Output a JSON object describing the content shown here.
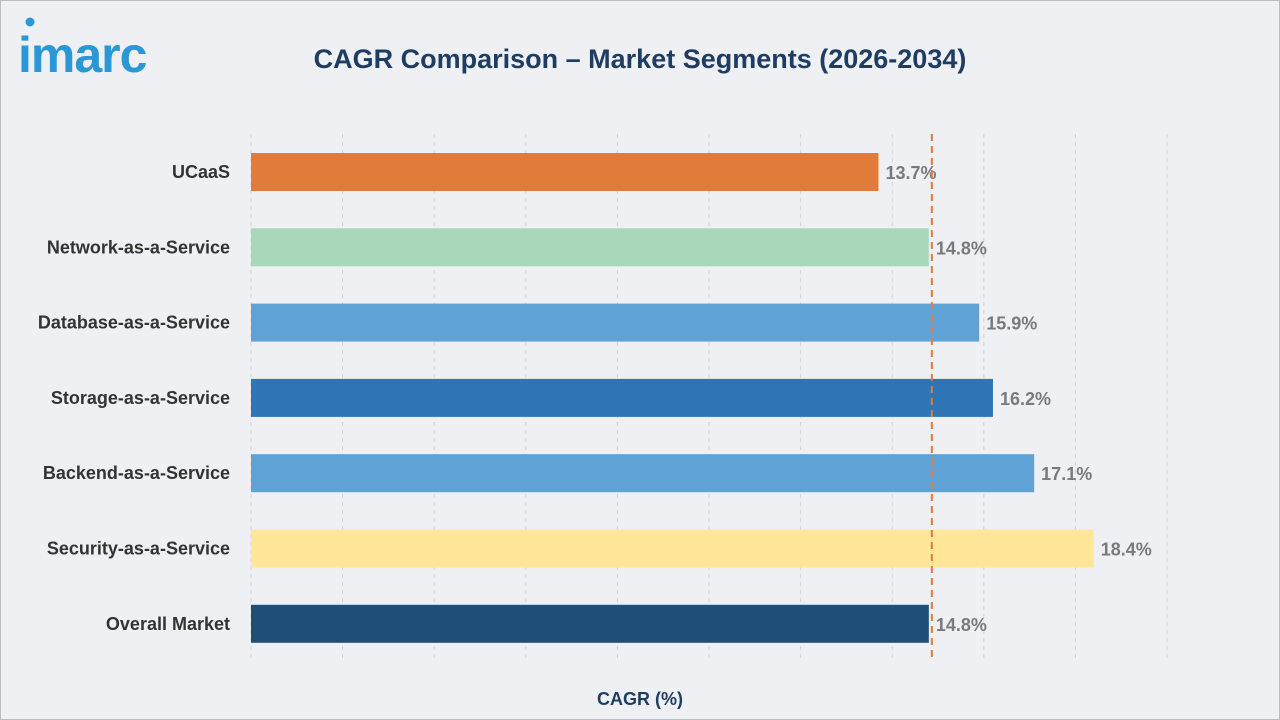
{
  "brand": {
    "logo_text": "imarc",
    "color": "#2a98d4"
  },
  "chart_data": {
    "type": "bar",
    "orientation": "horizontal",
    "title": "CAGR Comparison – Market Segments (2026-2034)",
    "xlabel": "CAGR (%)",
    "ylabel": "",
    "xlim": [
      0,
      20
    ],
    "grid": "vertical-dashed",
    "reference_line": {
      "value": 14.8,
      "style": "dashed",
      "color": "#e07b39"
    },
    "categories": [
      "UCaaS",
      "Network-as-a-Service",
      "Database-as-a-Service",
      "Storage-as-a-Service",
      "Backend-as-a-Service",
      "Security-as-a-Service",
      "Overall Market"
    ],
    "values": [
      13.7,
      14.8,
      15.9,
      16.2,
      17.1,
      18.4,
      14.8
    ],
    "labels": [
      "13.7%",
      "14.8%",
      "15.9%",
      "16.2%",
      "17.1%",
      "18.4%",
      "14.8%"
    ],
    "colors": [
      "#e07b39",
      "#a8d8b9",
      "#5fa3d6",
      "#2e75b6",
      "#5fa3d6",
      "#ffe699",
      "#1f4e79"
    ]
  }
}
